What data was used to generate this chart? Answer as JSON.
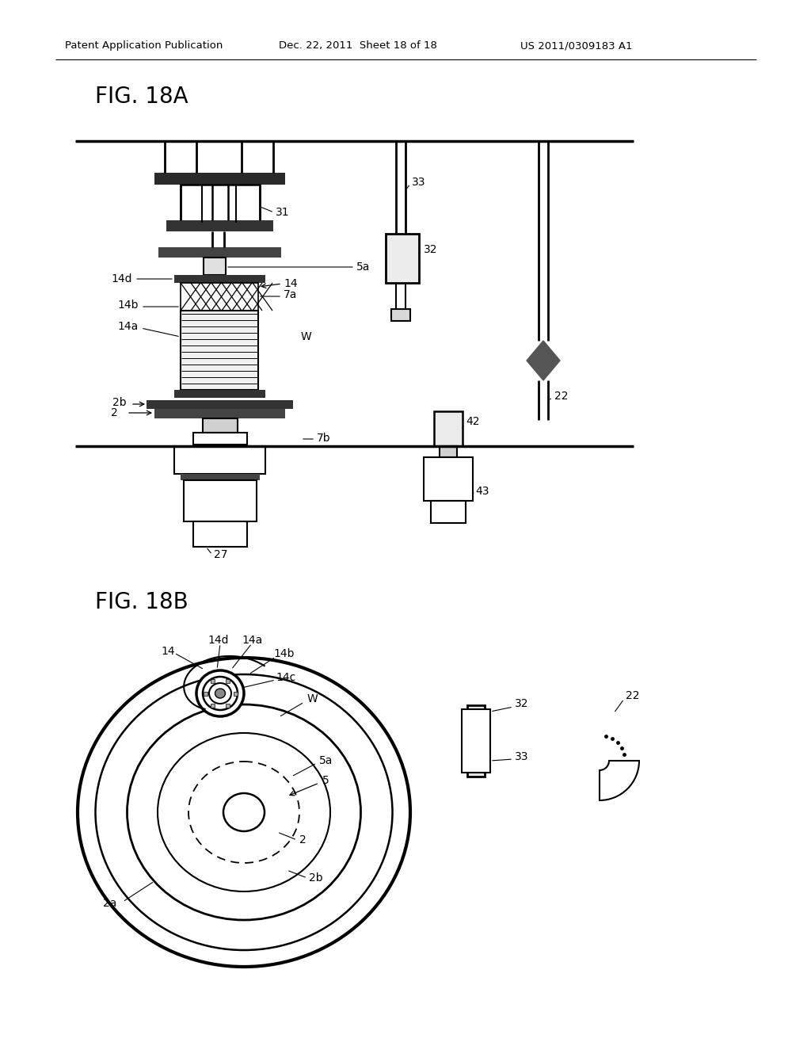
{
  "header_left": "Patent Application Publication",
  "header_mid": "Dec. 22, 2011  Sheet 18 of 18",
  "header_right": "US 2011/0309183 A1",
  "fig_a_label": "FIG. 18A",
  "fig_b_label": "FIG. 18B",
  "bg_color": "#ffffff",
  "line_color": "#000000",
  "label_fontsize": 10,
  "header_fontsize": 9.5,
  "fig_label_fontsize": 20
}
